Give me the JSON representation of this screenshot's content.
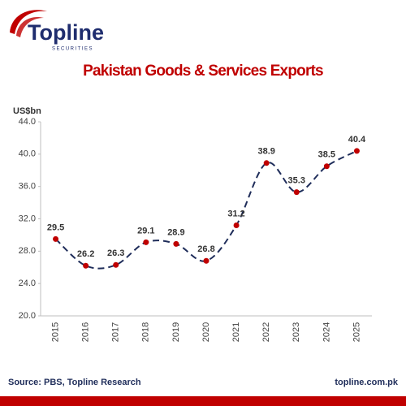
{
  "logo": {
    "name": "Topline",
    "tagline": "SECURITIES"
  },
  "chart_data": {
    "type": "line",
    "title": "Pakistan Goods & Services Exports",
    "y_label": "US$bn",
    "categories": [
      "2015",
      "2016",
      "2017",
      "2018",
      "2019",
      "2020",
      "2021",
      "2022",
      "2023",
      "2024",
      "2025"
    ],
    "series": [
      {
        "name": "Exports",
        "color": "#1f2d5a",
        "marker_color": "#c00000",
        "values": [
          29.5,
          26.2,
          26.3,
          29.1,
          28.9,
          26.8,
          31.2,
          38.9,
          35.3,
          38.5,
          40.4
        ]
      }
    ],
    "ylim": [
      20,
      44
    ],
    "yticks": [
      {
        "value": 20,
        "label": "20.0"
      },
      {
        "value": 24,
        "label": "24.0"
      },
      {
        "value": 28,
        "label": "28.0"
      },
      {
        "value": 32,
        "label": "32.0"
      },
      {
        "value": 36,
        "label": "36.0"
      },
      {
        "value": 40,
        "label": "40.0"
      },
      {
        "value": 44,
        "label": "44.0"
      }
    ],
    "grid": false
  },
  "footer": {
    "source": "Source: PBS, Topline Research",
    "website": "topline.com.pk"
  }
}
